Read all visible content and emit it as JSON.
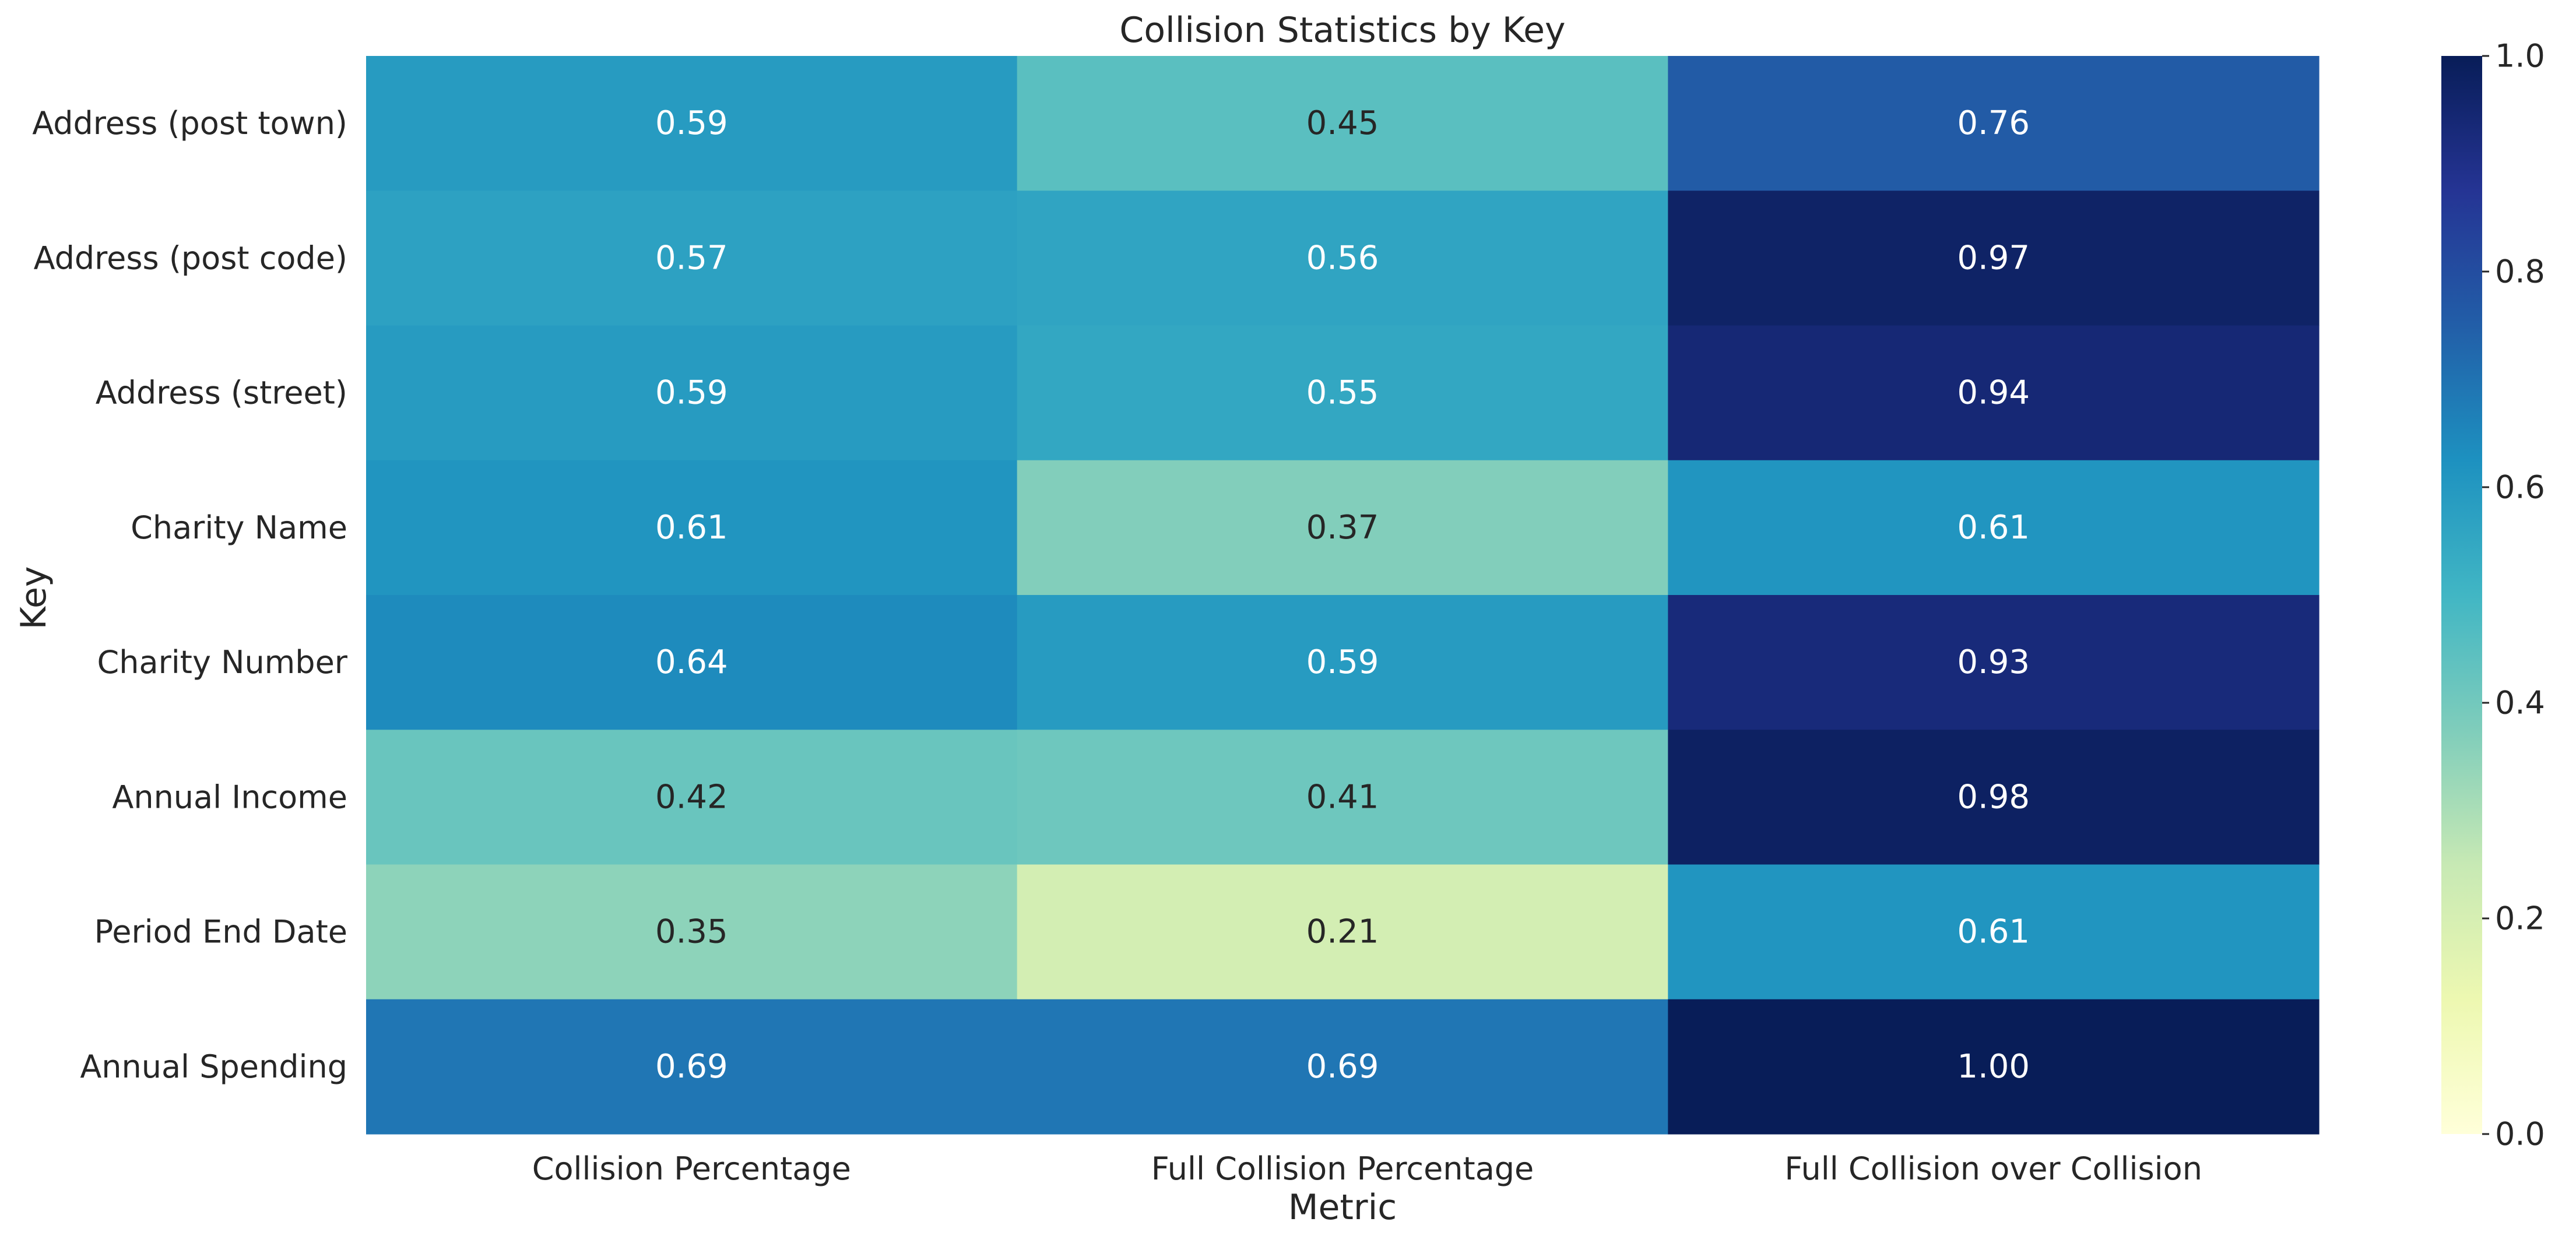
{
  "chart_data": {
    "type": "heatmap",
    "title": "Collision Statistics by Key",
    "xlabel": "Metric",
    "ylabel": "Key",
    "x_categories": [
      "Collision Percentage",
      "Full Collision Percentage",
      "Full Collision over Collision"
    ],
    "y_categories": [
      "Address (post town)",
      "Address (post code)",
      "Address (street)",
      "Charity Name",
      "Charity Number",
      "Annual Income",
      "Period End Date",
      "Annual Spending"
    ],
    "values": [
      [
        0.59,
        0.45,
        0.76
      ],
      [
        0.57,
        0.56,
        0.97
      ],
      [
        0.59,
        0.55,
        0.94
      ],
      [
        0.61,
        0.37,
        0.61
      ],
      [
        0.64,
        0.59,
        0.93
      ],
      [
        0.42,
        0.41,
        0.98
      ],
      [
        0.35,
        0.21,
        0.61
      ],
      [
        0.69,
        0.69,
        1.0
      ]
    ],
    "value_labels": [
      [
        "0.59",
        "0.45",
        "0.76"
      ],
      [
        "0.57",
        "0.56",
        "0.97"
      ],
      [
        "0.59",
        "0.55",
        "0.94"
      ],
      [
        "0.61",
        "0.37",
        "0.61"
      ],
      [
        "0.64",
        "0.59",
        "0.93"
      ],
      [
        "0.42",
        "0.41",
        "0.98"
      ],
      [
        "0.35",
        "0.21",
        "0.61"
      ],
      [
        "0.69",
        "0.69",
        "1.00"
      ]
    ],
    "colormap": "YlGnBu",
    "vmin": 0,
    "vmax": 1,
    "colorbar_ticks": [
      "0.0",
      "0.2",
      "0.4",
      "0.6",
      "0.8",
      "1.0"
    ],
    "colorbar_tick_values": [
      0,
      0.2,
      0.4,
      0.6,
      0.8,
      1.0
    ],
    "colormap_stops": [
      "#ffffd9",
      "#edf8b1",
      "#c7e9b4",
      "#7fcdbb",
      "#41b6c4",
      "#1d91c0",
      "#225ea8",
      "#253494",
      "#081d58"
    ],
    "grid": false
  }
}
